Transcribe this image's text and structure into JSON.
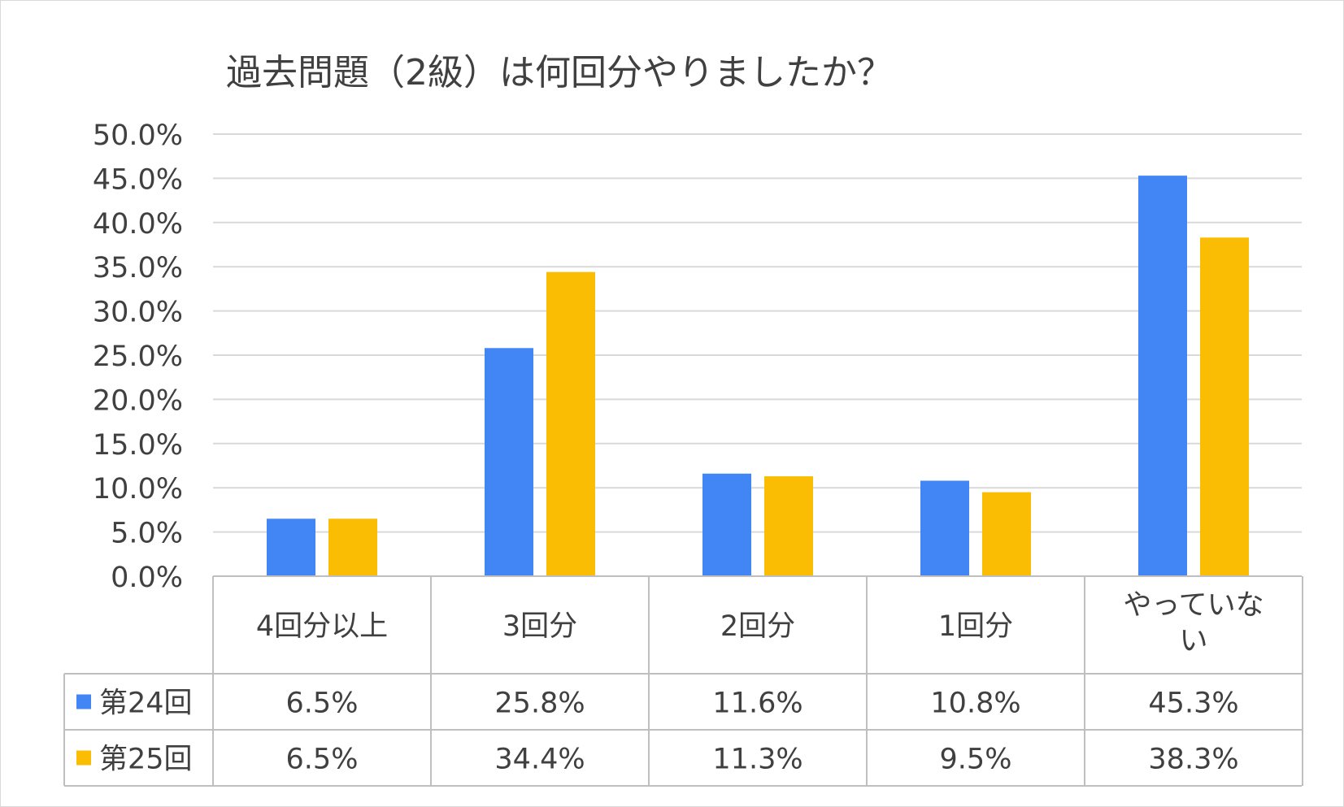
{
  "chart_data": {
    "type": "bar",
    "title": "過去問題（2級）は何回分やりましたか？",
    "categories": [
      "4回分以上",
      "3回分",
      "2回分",
      "1回分",
      "やっていない"
    ],
    "series": [
      {
        "name": "第24回",
        "color": "#4285F4",
        "values": [
          6.5,
          25.8,
          11.6,
          10.8,
          45.3
        ],
        "labels": [
          "6.5%",
          "25.8%",
          "11.6%",
          "10.8%",
          "45.3%"
        ]
      },
      {
        "name": "第25回",
        "color": "#FBBC04",
        "values": [
          6.5,
          34.4,
          11.3,
          9.5,
          38.3
        ],
        "labels": [
          "6.5%",
          "34.4%",
          "11.3%",
          "9.5%",
          "38.3%"
        ]
      }
    ],
    "ylim": [
      0,
      50
    ],
    "yticks": [
      "0.0%",
      "5.0%",
      "10.0%",
      "15.0%",
      "20.0%",
      "25.0%",
      "30.0%",
      "35.0%",
      "40.0%",
      "45.0%",
      "50.0%"
    ],
    "grid": true,
    "legend": "data-table"
  }
}
